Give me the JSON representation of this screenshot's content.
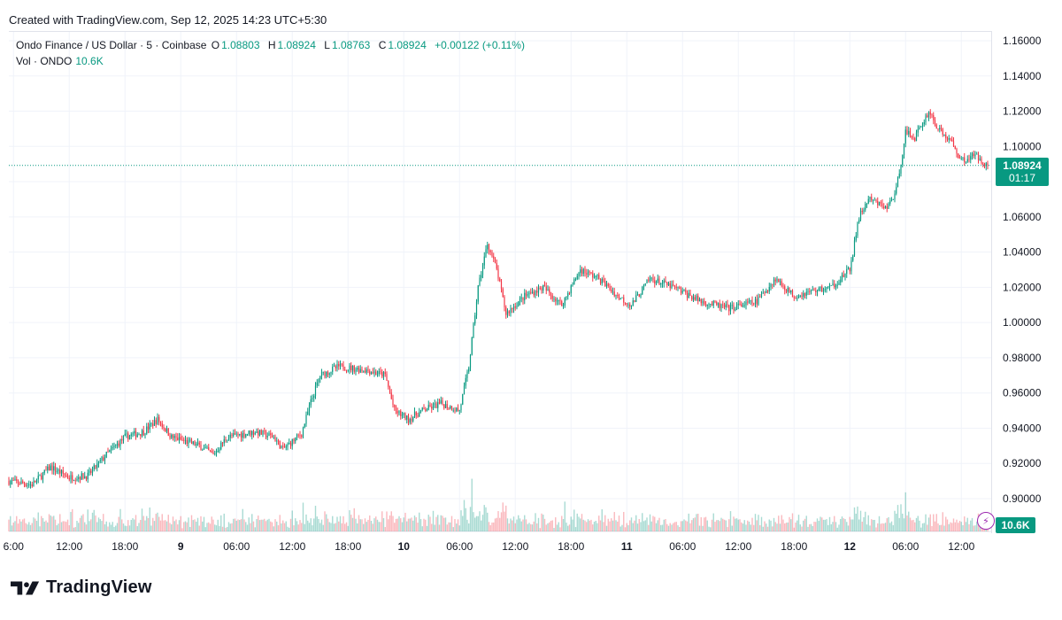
{
  "header": {
    "created_with": "Created with TradingView.com, Sep 12, 2025 14:23 UTC+5:30"
  },
  "legend": {
    "symbol": "Ondo Finance / US Dollar · 5 · Coinbase",
    "open_label": "O",
    "open": "1.08803",
    "high_label": "H",
    "high": "1.08924",
    "low_label": "L",
    "low": "1.08763",
    "close_label": "C",
    "close": "1.08924",
    "change": "+0.00122 (+0.11%)",
    "vol_label": "Vol · ONDO",
    "vol_value": "10.6K"
  },
  "price_tag": {
    "price": "1.08924",
    "countdown": "01:17"
  },
  "vol_tag": {
    "value": "10.6K"
  },
  "brand": {
    "name": "TradingView"
  },
  "colors": {
    "up": "#089981",
    "down": "#f23645",
    "grid": "#f0f3fa",
    "accent": "#089981"
  },
  "icons": {
    "alert": "lightning-icon",
    "logo": "tradingview-logo-icon"
  },
  "chart_data": {
    "type": "candlestick",
    "title": "Ondo Finance / US Dollar · 5 · Coinbase",
    "ylim": [
      0.885,
      1.16
    ],
    "y_ticks": [
      "1.16000",
      "1.14000",
      "1.12000",
      "1.10000",
      "1.08000",
      "1.06000",
      "1.04000",
      "1.02000",
      "1.00000",
      "0.98000",
      "0.96000",
      "0.94000",
      "0.92000",
      "0.90000"
    ],
    "y_tick_values": [
      1.16,
      1.14,
      1.12,
      1.1,
      1.08,
      1.06,
      1.04,
      1.02,
      1.0,
      0.98,
      0.96,
      0.94,
      0.92,
      0.9
    ],
    "x_ticks": [
      {
        "label": "6:00",
        "hour": 6,
        "bold": false
      },
      {
        "label": "12:00",
        "hour": 12,
        "bold": false
      },
      {
        "label": "18:00",
        "hour": 18,
        "bold": false
      },
      {
        "label": "9",
        "hour": 24,
        "bold": true
      },
      {
        "label": "06:00",
        "hour": 30,
        "bold": false
      },
      {
        "label": "12:00",
        "hour": 36,
        "bold": false
      },
      {
        "label": "18:00",
        "hour": 42,
        "bold": false
      },
      {
        "label": "10",
        "hour": 48,
        "bold": true
      },
      {
        "label": "06:00",
        "hour": 54,
        "bold": false
      },
      {
        "label": "12:00",
        "hour": 60,
        "bold": false
      },
      {
        "label": "18:00",
        "hour": 66,
        "bold": false
      },
      {
        "label": "11",
        "hour": 72,
        "bold": true
      },
      {
        "label": "06:00",
        "hour": 78,
        "bold": false
      },
      {
        "label": "12:00",
        "hour": 84,
        "bold": false
      },
      {
        "label": "18:00",
        "hour": 90,
        "bold": false
      },
      {
        "label": "12",
        "hour": 96,
        "bold": true
      },
      {
        "label": "06:00",
        "hour": 102,
        "bold": false
      },
      {
        "label": "12:00",
        "hour": 108,
        "bold": false
      }
    ],
    "x_range_hours": [
      5.5,
      110.9
    ],
    "last_price": 1.08924,
    "price_path": [
      {
        "h": 5.5,
        "p": 0.91
      },
      {
        "h": 8,
        "p": 0.908
      },
      {
        "h": 10,
        "p": 0.918
      },
      {
        "h": 12,
        "p": 0.912
      },
      {
        "h": 14,
        "p": 0.913
      },
      {
        "h": 16,
        "p": 0.925
      },
      {
        "h": 18,
        "p": 0.935
      },
      {
        "h": 20,
        "p": 0.938
      },
      {
        "h": 21.5,
        "p": 0.945
      },
      {
        "h": 23,
        "p": 0.935
      },
      {
        "h": 26,
        "p": 0.93
      },
      {
        "h": 27.5,
        "p": 0.925
      },
      {
        "h": 29,
        "p": 0.935
      },
      {
        "h": 32,
        "p": 0.938
      },
      {
        "h": 34,
        "p": 0.935
      },
      {
        "h": 35,
        "p": 0.928
      },
      {
        "h": 37,
        "p": 0.937
      },
      {
        "h": 38,
        "p": 0.955
      },
      {
        "h": 39,
        "p": 0.97
      },
      {
        "h": 41,
        "p": 0.975
      },
      {
        "h": 44,
        "p": 0.973
      },
      {
        "h": 46,
        "p": 0.97
      },
      {
        "h": 47,
        "p": 0.95
      },
      {
        "h": 48.5,
        "p": 0.945
      },
      {
        "h": 50,
        "p": 0.95
      },
      {
        "h": 52,
        "p": 0.954
      },
      {
        "h": 54,
        "p": 0.95
      },
      {
        "h": 55,
        "p": 0.975
      },
      {
        "h": 56,
        "p": 1.02
      },
      {
        "h": 57,
        "p": 1.045
      },
      {
        "h": 58,
        "p": 1.03
      },
      {
        "h": 59,
        "p": 1.005
      },
      {
        "h": 61,
        "p": 1.015
      },
      {
        "h": 63,
        "p": 1.02
      },
      {
        "h": 65,
        "p": 1.01
      },
      {
        "h": 67,
        "p": 1.03
      },
      {
        "h": 69,
        "p": 1.025
      },
      {
        "h": 71,
        "p": 1.015
      },
      {
        "h": 72.5,
        "p": 1.01
      },
      {
        "h": 74.5,
        "p": 1.025
      },
      {
        "h": 77,
        "p": 1.02
      },
      {
        "h": 80,
        "p": 1.012
      },
      {
        "h": 83,
        "p": 1.008
      },
      {
        "h": 86,
        "p": 1.012
      },
      {
        "h": 88,
        "p": 1.025
      },
      {
        "h": 90,
        "p": 1.015
      },
      {
        "h": 92,
        "p": 1.018
      },
      {
        "h": 94,
        "p": 1.02
      },
      {
        "h": 96,
        "p": 1.03
      },
      {
        "h": 97,
        "p": 1.06
      },
      {
        "h": 98,
        "p": 1.07
      },
      {
        "h": 100,
        "p": 1.065
      },
      {
        "h": 101,
        "p": 1.075
      },
      {
        "h": 102,
        "p": 1.108
      },
      {
        "h": 103,
        "p": 1.105
      },
      {
        "h": 104.5,
        "p": 1.12
      },
      {
        "h": 105.5,
        "p": 1.11
      },
      {
        "h": 107,
        "p": 1.102
      },
      {
        "h": 108,
        "p": 1.092
      },
      {
        "h": 109.5,
        "p": 1.095
      },
      {
        "h": 110.9,
        "p": 1.089
      }
    ]
  }
}
